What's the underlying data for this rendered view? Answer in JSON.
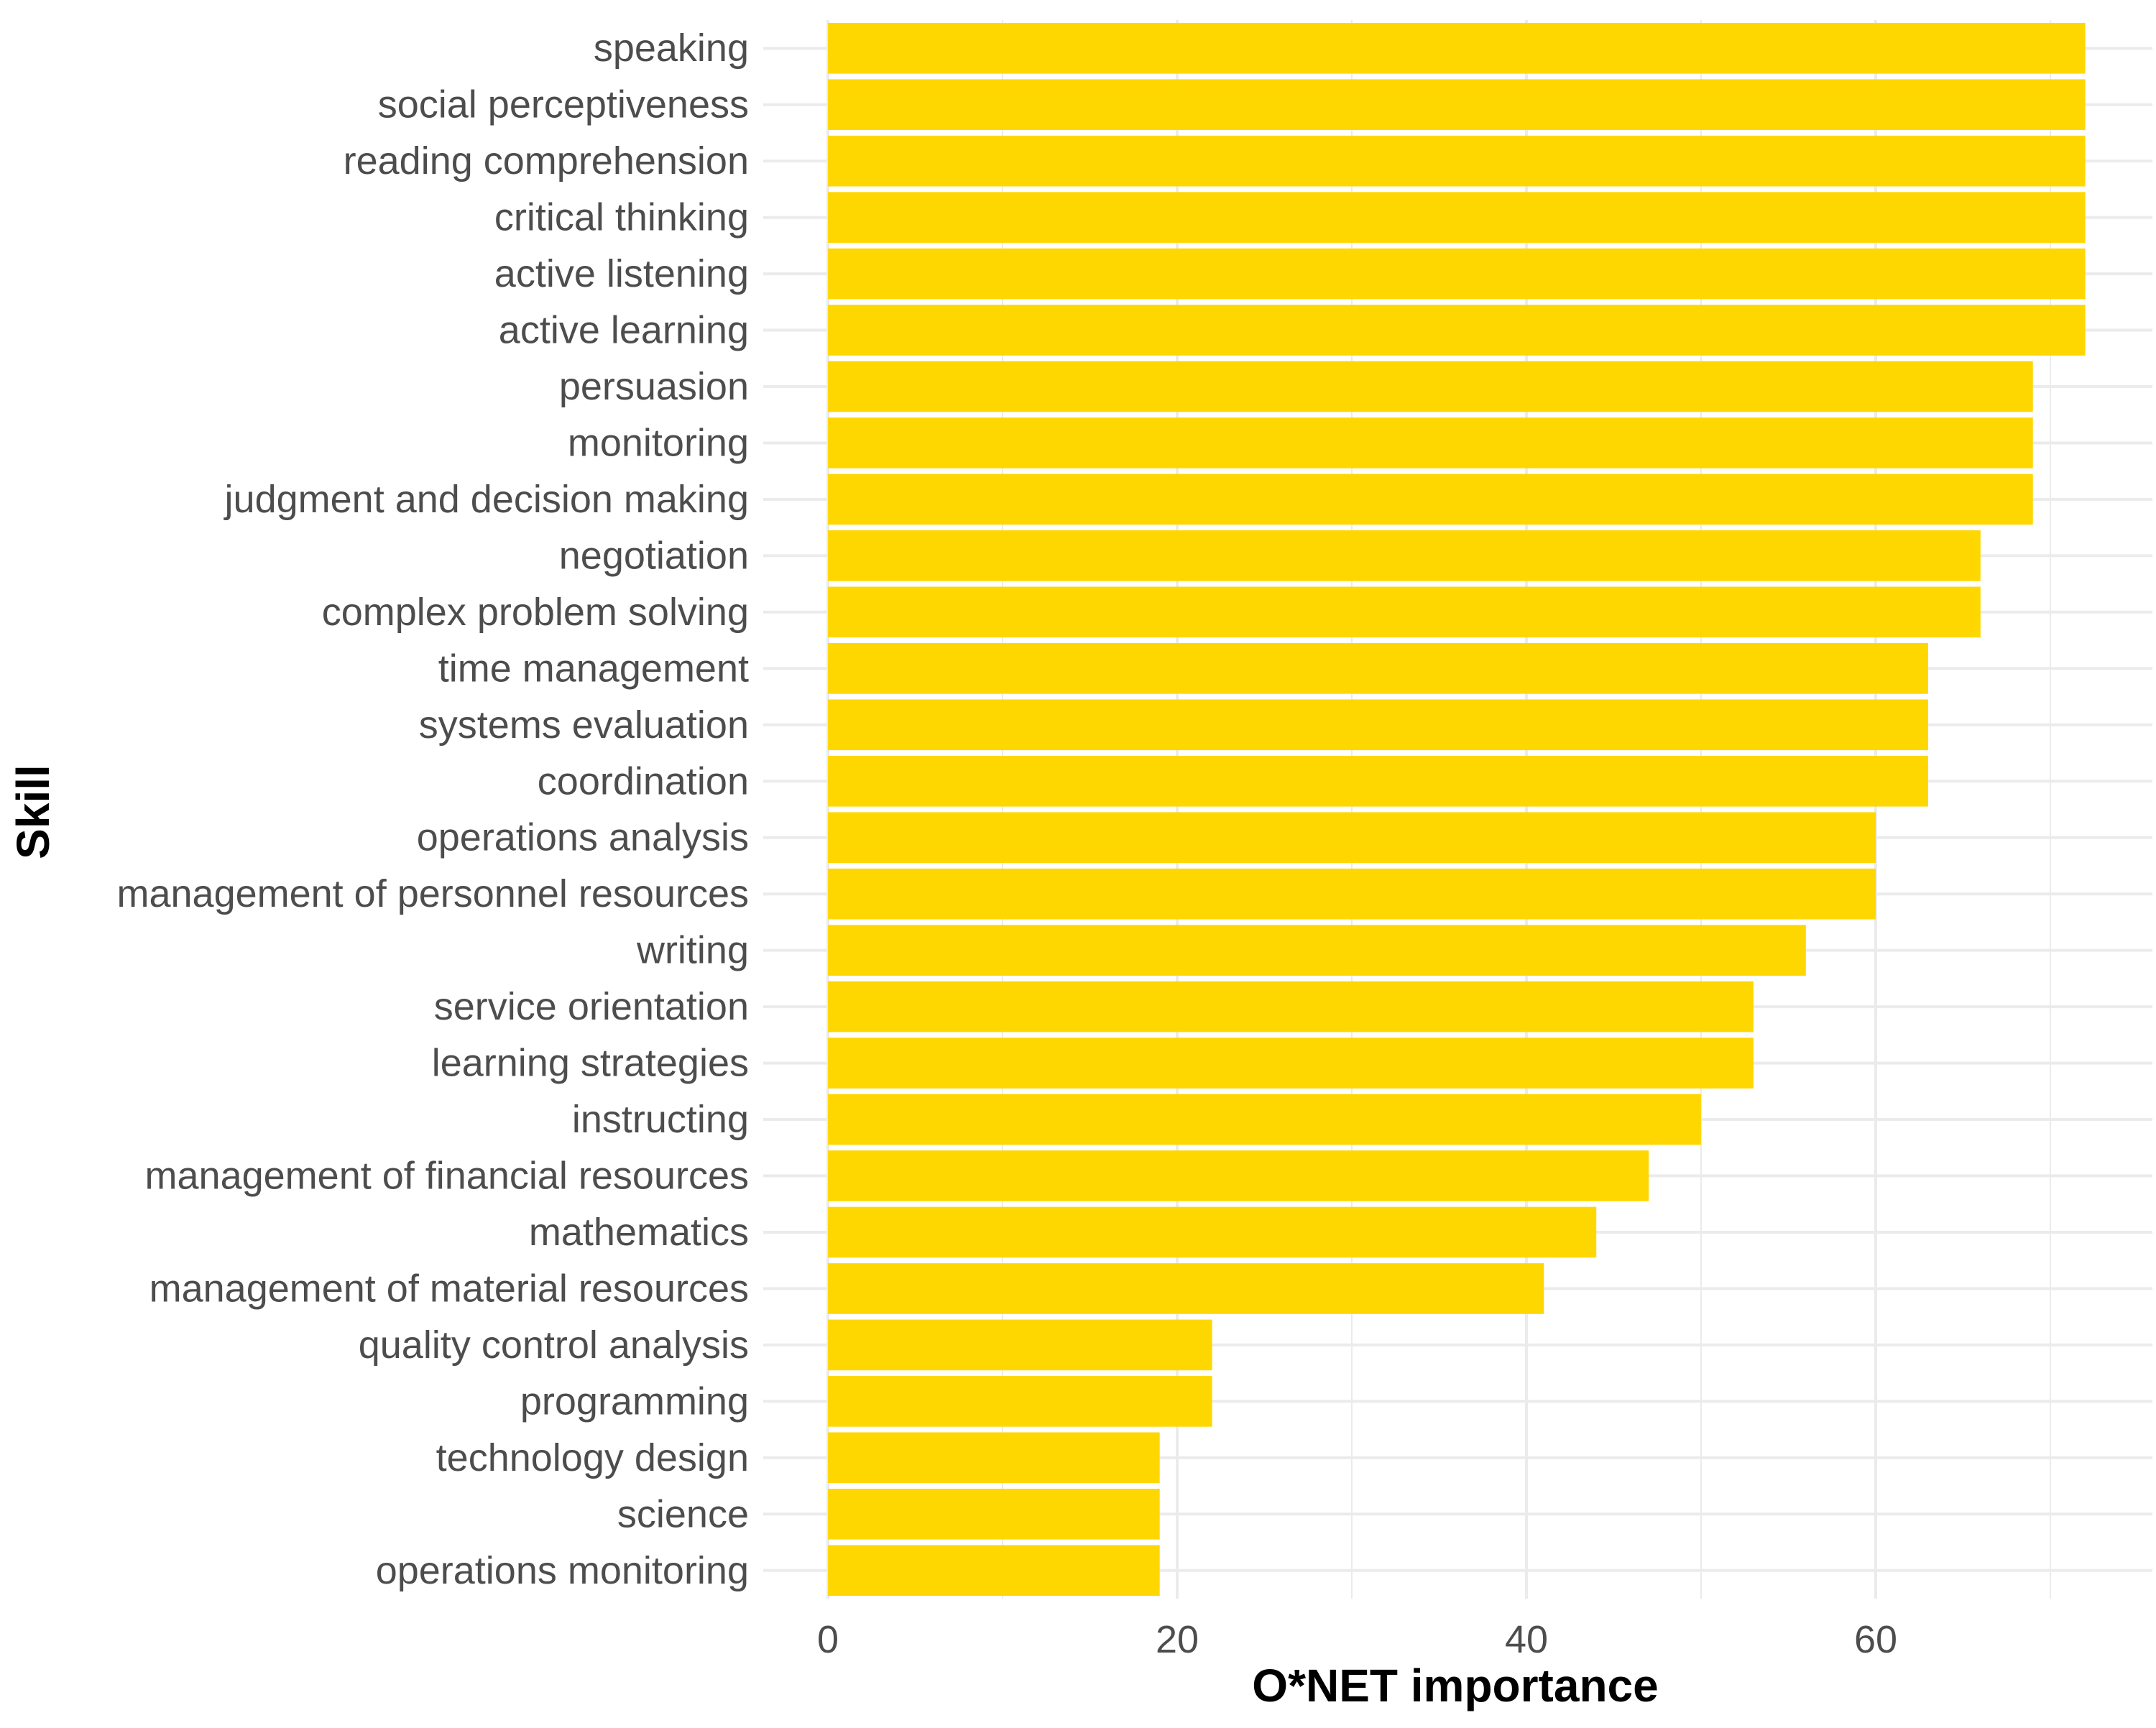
{
  "chart_data": {
    "type": "bar",
    "orientation": "horizontal",
    "xlabel": "O*NET importance",
    "ylabel": "Skill",
    "xlim": [
      0,
      75
    ],
    "x_ticks": [
      0,
      20,
      40,
      60
    ],
    "grid": true,
    "bar_color": "#FFD700",
    "categories": [
      "speaking",
      "social perceptiveness",
      "reading comprehension",
      "critical thinking",
      "active listening",
      "active learning",
      "persuasion",
      "monitoring",
      "judgment and decision making",
      "negotiation",
      "complex problem solving",
      "time management",
      "systems evaluation",
      "coordination",
      "operations analysis",
      "management of personnel resources",
      "writing",
      "service orientation",
      "learning strategies",
      "instructing",
      "management of financial resources",
      "mathematics",
      "management of material resources",
      "quality control analysis",
      "programming",
      "technology design",
      "science",
      "operations monitoring"
    ],
    "values": [
      72,
      72,
      72,
      72,
      72,
      72,
      69,
      69,
      69,
      66,
      66,
      63,
      63,
      63,
      60,
      60,
      56,
      53,
      53,
      50,
      47,
      44,
      41,
      22,
      22,
      19,
      19,
      19
    ]
  }
}
